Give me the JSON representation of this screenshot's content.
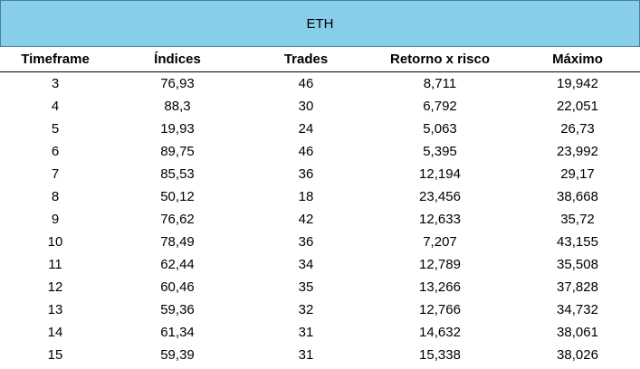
{
  "table": {
    "title": "ETH",
    "columns": [
      "Timeframe",
      "Índices",
      "Trades",
      "Retorno x risco",
      "Máximo"
    ],
    "rows": [
      [
        "3",
        "76,93",
        "46",
        "8,711",
        "19,942"
      ],
      [
        "4",
        "88,3",
        "30",
        "6,792",
        "22,051"
      ],
      [
        "5",
        "19,93",
        "24",
        "5,063",
        "26,73"
      ],
      [
        "6",
        "89,75",
        "46",
        "5,395",
        "23,992"
      ],
      [
        "7",
        "85,53",
        "36",
        "12,194",
        "29,17"
      ],
      [
        "8",
        "50,12",
        "18",
        "23,456",
        "38,668"
      ],
      [
        "9",
        "76,62",
        "42",
        "12,633",
        "35,72"
      ],
      [
        "10",
        "78,49",
        "36",
        "7,207",
        "43,155"
      ],
      [
        "11",
        "62,44",
        "34",
        "12,789",
        "35,508"
      ],
      [
        "12",
        "60,46",
        "35",
        "13,266",
        "37,828"
      ],
      [
        "13",
        "59,36",
        "32",
        "12,766",
        "34,732"
      ],
      [
        "14",
        "61,34",
        "31",
        "14,632",
        "38,061"
      ],
      [
        "15",
        "59,39",
        "31",
        "15,338",
        "38,026"
      ]
    ]
  }
}
